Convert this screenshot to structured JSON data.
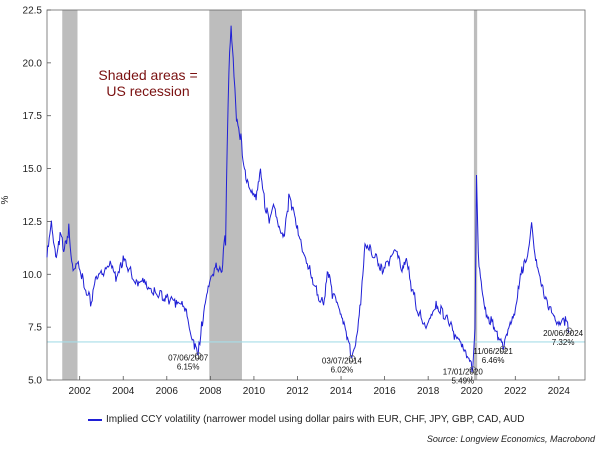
{
  "chart_data": {
    "type": "line",
    "ylabel": "%",
    "ylim": [
      5.0,
      22.5
    ],
    "xlim": [
      2000.5,
      2025.2
    ],
    "y_ticks": [
      "5.0",
      "7.5",
      "10.0",
      "12.5",
      "15.0",
      "17.5",
      "20.0",
      "22.5"
    ],
    "x_ticks": [
      "2002",
      "2004",
      "2006",
      "2008",
      "2010",
      "2012",
      "2014",
      "2016",
      "2018",
      "2020",
      "2022",
      "2024"
    ],
    "series": [
      {
        "name": "Implied CCY volatility (narrower model using dollar pairs with EUR, CHF, JPY, GBP, CAD, AUD",
        "color": "#1f1fd6",
        "points": [
          [
            2000.5,
            10.8
          ],
          [
            2000.7,
            12.3
          ],
          [
            2000.9,
            10.6
          ],
          [
            2001.1,
            11.8
          ],
          [
            2001.3,
            11.2
          ],
          [
            2001.5,
            12.1
          ],
          [
            2001.7,
            10.2
          ],
          [
            2001.9,
            10.8
          ],
          [
            2002.2,
            9.5
          ],
          [
            2002.5,
            8.7
          ],
          [
            2002.8,
            9.9
          ],
          [
            2003.1,
            10.0
          ],
          [
            2003.4,
            10.4
          ],
          [
            2003.7,
            9.7
          ],
          [
            2004.0,
            10.7
          ],
          [
            2004.3,
            10.2
          ],
          [
            2004.6,
            9.5
          ],
          [
            2004.9,
            9.9
          ],
          [
            2005.2,
            9.4
          ],
          [
            2005.5,
            9.1
          ],
          [
            2005.8,
            9.0
          ],
          [
            2006.1,
            8.8
          ],
          [
            2006.4,
            8.6
          ],
          [
            2006.7,
            8.5
          ],
          [
            2006.9,
            8.1
          ],
          [
            2007.1,
            7.0
          ],
          [
            2007.3,
            6.6
          ],
          [
            2007.44,
            6.15
          ],
          [
            2007.6,
            7.6
          ],
          [
            2007.8,
            9.1
          ],
          [
            2008.0,
            9.9
          ],
          [
            2008.3,
            10.4
          ],
          [
            2008.5,
            10.1
          ],
          [
            2008.7,
            12.0
          ],
          [
            2008.85,
            19.5
          ],
          [
            2008.95,
            21.5
          ],
          [
            2009.05,
            20.0
          ],
          [
            2009.2,
            17.2
          ],
          [
            2009.4,
            16.5
          ],
          [
            2009.6,
            14.8
          ],
          [
            2009.8,
            14.2
          ],
          [
            2010.1,
            13.7
          ],
          [
            2010.3,
            15.1
          ],
          [
            2010.5,
            13.2
          ],
          [
            2010.7,
            12.6
          ],
          [
            2010.9,
            13.1
          ],
          [
            2011.2,
            11.9
          ],
          [
            2011.4,
            11.7
          ],
          [
            2011.6,
            13.6
          ],
          [
            2011.8,
            13.1
          ],
          [
            2012.0,
            12.3
          ],
          [
            2012.3,
            11.0
          ],
          [
            2012.6,
            10.1
          ],
          [
            2012.9,
            9.1
          ],
          [
            2013.2,
            8.6
          ],
          [
            2013.4,
            10.1
          ],
          [
            2013.6,
            9.1
          ],
          [
            2013.9,
            8.2
          ],
          [
            2014.1,
            7.6
          ],
          [
            2014.3,
            6.9
          ],
          [
            2014.5,
            6.02
          ],
          [
            2014.7,
            7.0
          ],
          [
            2014.9,
            8.9
          ],
          [
            2015.1,
            11.6
          ],
          [
            2015.4,
            11.1
          ],
          [
            2015.7,
            10.6
          ],
          [
            2015.9,
            10.1
          ],
          [
            2016.2,
            10.6
          ],
          [
            2016.5,
            11.1
          ],
          [
            2016.8,
            10.1
          ],
          [
            2017.0,
            10.6
          ],
          [
            2017.3,
            9.1
          ],
          [
            2017.6,
            8.1
          ],
          [
            2017.9,
            7.6
          ],
          [
            2018.1,
            8.1
          ],
          [
            2018.4,
            8.6
          ],
          [
            2018.7,
            8.1
          ],
          [
            2018.9,
            7.9
          ],
          [
            2019.2,
            7.1
          ],
          [
            2019.5,
            6.6
          ],
          [
            2019.8,
            6.1
          ],
          [
            2020.05,
            5.49
          ],
          [
            2020.15,
            7.2
          ],
          [
            2020.22,
            14.4
          ],
          [
            2020.3,
            11.0
          ],
          [
            2020.5,
            9.1
          ],
          [
            2020.7,
            8.1
          ],
          [
            2021.0,
            7.6
          ],
          [
            2021.2,
            7.1
          ],
          [
            2021.44,
            6.46
          ],
          [
            2021.6,
            7.0
          ],
          [
            2021.8,
            7.6
          ],
          [
            2022.0,
            8.1
          ],
          [
            2022.2,
            9.6
          ],
          [
            2022.4,
            10.6
          ],
          [
            2022.6,
            11.1
          ],
          [
            2022.75,
            12.6
          ],
          [
            2022.9,
            11.1
          ],
          [
            2023.1,
            10.1
          ],
          [
            2023.3,
            9.1
          ],
          [
            2023.5,
            8.6
          ],
          [
            2023.7,
            8.1
          ],
          [
            2023.9,
            7.6
          ],
          [
            2024.1,
            7.6
          ],
          [
            2024.3,
            7.8
          ],
          [
            2024.47,
            7.32
          ]
        ]
      }
    ],
    "recessions": [
      [
        2001.2,
        2001.9
      ],
      [
        2007.95,
        2009.45
      ],
      [
        2020.1,
        2020.25
      ]
    ],
    "reference_line": 6.8,
    "annotations": [
      {
        "date": "07/06/2007",
        "value": "6.15%",
        "x": 2007.44,
        "y": 6.15
      },
      {
        "date": "03/07/2014",
        "value": "6.02%",
        "x": 2014.5,
        "y": 6.02
      },
      {
        "date": "17/01/2020",
        "value": "5.49%",
        "x": 2020.05,
        "y": 5.49
      },
      {
        "date": "11/06/2021",
        "value": "6.46%",
        "x": 2021.44,
        "y": 6.46
      },
      {
        "date": "20/06/2024",
        "value": "7.32%",
        "x": 2024.47,
        "y": 7.32
      }
    ],
    "shade_note": [
      "Shaded areas =",
      "US recession"
    ],
    "colors": {
      "line": "#1f1fd6",
      "recession": "#bdbdbd",
      "reference": "#a7dde8",
      "note": "#7a1010"
    }
  },
  "legend_label": "Implied CCY volatility (narrower model using dollar pairs with EUR, CHF, JPY, GBP, CAD, AUD",
  "source": "Source: Longview Economics, Macrobond"
}
